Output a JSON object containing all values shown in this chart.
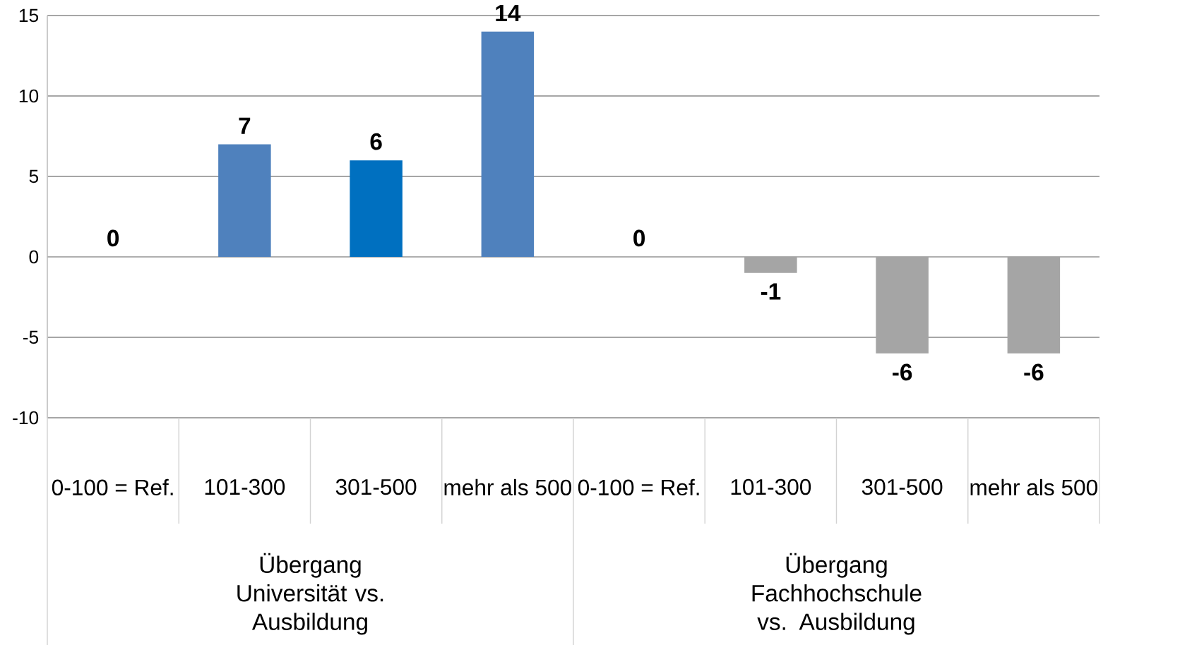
{
  "chart_data": {
    "type": "bar",
    "categories": [
      "0-100 = Ref.",
      "101-300",
      "301-500",
      "mehr als 500",
      "0-100 = Ref.",
      "101-300",
      "301-500",
      "mehr als 500"
    ],
    "values": [
      0,
      7,
      6,
      14,
      0,
      -1,
      -6,
      -6
    ],
    "colors": [
      "#4f81bd",
      "#4f81bd",
      "#0070c0",
      "#4f81bd",
      "#a5a5a5",
      "#a5a5a5",
      "#a5a5a5",
      "#a5a5a5"
    ],
    "ylim": [
      -10,
      15
    ],
    "yticks": [
      -10,
      -5,
      0,
      5,
      10,
      15
    ],
    "grid": "y",
    "data_labels": true,
    "annotations": [
      "Übergang Universität vs. Ausbildung",
      "Übergang Fachhochschule vs. Ausbildung"
    ]
  }
}
